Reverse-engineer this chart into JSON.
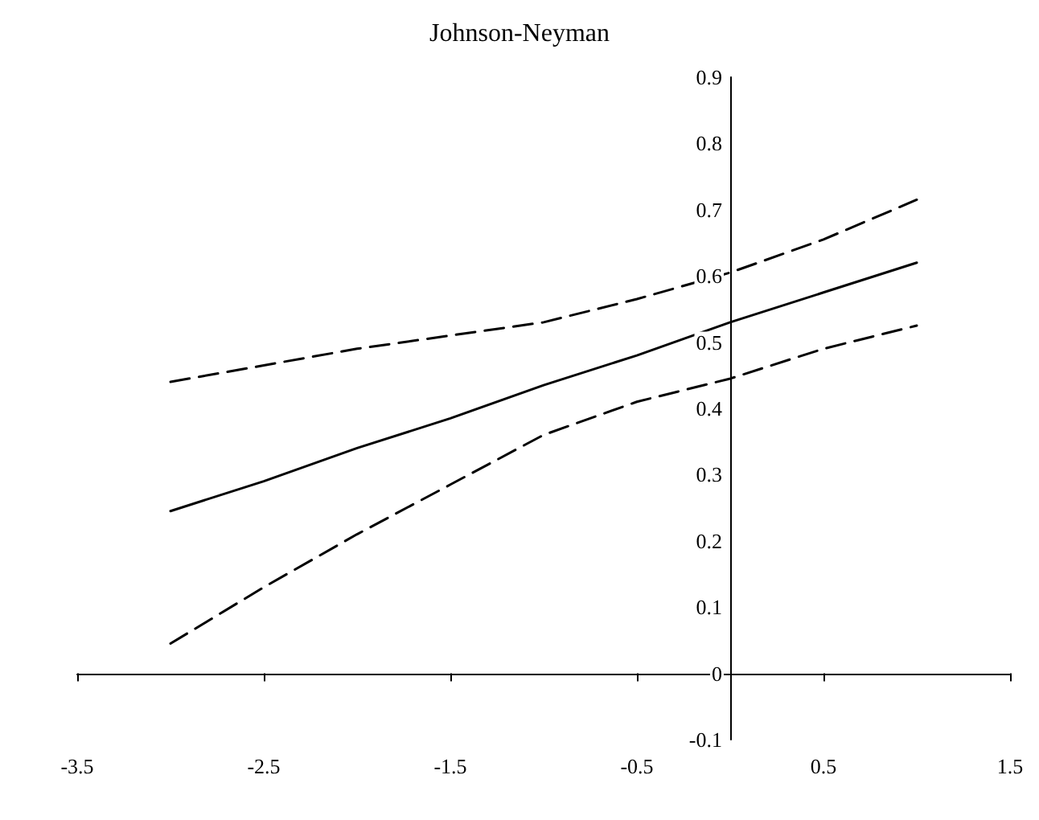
{
  "chart_data": {
    "type": "line",
    "title": "Johnson-Neyman",
    "x": [
      -3,
      -2.5,
      -2,
      -1.5,
      -1,
      -0.5,
      0,
      0.5,
      1
    ],
    "series": [
      {
        "color": "#000000",
        "line_style": "dashed",
        "values": [
          0.44,
          0.465,
          0.49,
          0.51,
          0.53,
          0.565,
          0.605,
          0.655,
          0.715
        ]
      },
      {
        "color": "#000000",
        "line_style": "solid",
        "values": [
          0.245,
          0.29,
          0.34,
          0.385,
          0.435,
          0.48,
          0.53,
          0.575,
          0.62
        ]
      },
      {
        "color": "#000000",
        "line_style": "dashed",
        "values": [
          0.045,
          0.13,
          0.21,
          0.285,
          0.36,
          0.41,
          0.445,
          0.49,
          0.525
        ]
      }
    ],
    "xlim": [
      -3.5,
      1.5
    ],
    "xticks": [
      -3.5,
      -2.5,
      -1.5,
      -0.5,
      0.5,
      1.5
    ],
    "ylim": [
      -0.1,
      0.9
    ],
    "yticks": [
      -0.1,
      0,
      0.1,
      0.2,
      0.3,
      0.4,
      0.5,
      0.6,
      0.7,
      0.8,
      0.9
    ],
    "marker": "none"
  }
}
